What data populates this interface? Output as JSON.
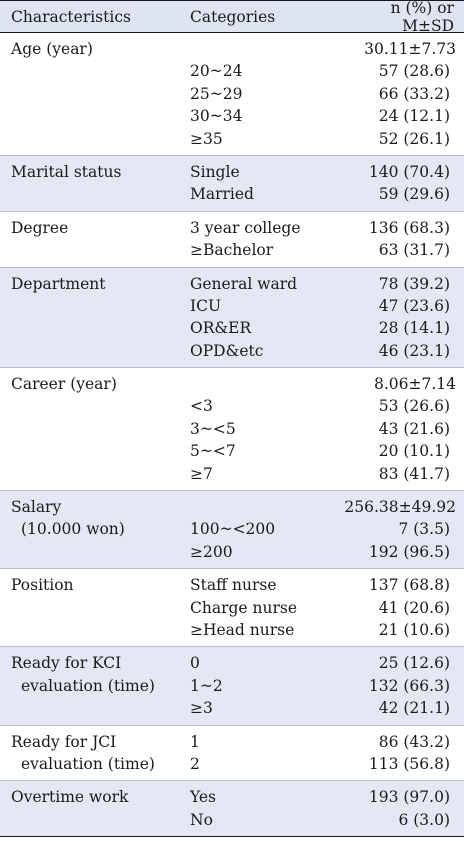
{
  "header": {
    "characteristics": "Characteristics",
    "categories": "Categories",
    "value": "n (%) or M±SD"
  },
  "groups": [
    {
      "label": [
        "Age (year)"
      ],
      "rows": [
        {
          "category": "",
          "value": "30.11±7.73",
          "total": true
        },
        {
          "category": "20~24",
          "value": "57 (28.6)"
        },
        {
          "category": "25~29",
          "value": "66 (33.2)"
        },
        {
          "category": "30~34",
          "value": "24 (12.1)"
        },
        {
          "category": "≥35",
          "value": "52 (26.1)"
        }
      ]
    },
    {
      "label": [
        "Marital status"
      ],
      "rows": [
        {
          "category": "Single",
          "value": "140 (70.4)"
        },
        {
          "category": "Married",
          "value": "59 (29.6)"
        }
      ]
    },
    {
      "label": [
        "Degree"
      ],
      "rows": [
        {
          "category": "3 year college",
          "value": "136 (68.3)"
        },
        {
          "category": "≥Bachelor",
          "value": "63 (31.7)"
        }
      ]
    },
    {
      "label": [
        "Department"
      ],
      "rows": [
        {
          "category": "General ward",
          "value": "78 (39.2)"
        },
        {
          "category": "ICU",
          "value": "47 (23.6)"
        },
        {
          "category": "OR&ER",
          "value": "28 (14.1)"
        },
        {
          "category": "OPD&etc",
          "value": "46 (23.1)"
        }
      ]
    },
    {
      "label": [
        "Career (year)"
      ],
      "rows": [
        {
          "category": "",
          "value": "8.06±7.14",
          "total": true
        },
        {
          "category": "<3",
          "value": "53 (26.6)"
        },
        {
          "category": "3~<5",
          "value": "43 (21.6)"
        },
        {
          "category": "5~<7",
          "value": "20 (10.1)"
        },
        {
          "category": "≥7",
          "value": "83 (41.7)"
        }
      ]
    },
    {
      "label": [
        "Salary",
        "(10.000 won)"
      ],
      "rows": [
        {
          "category": "",
          "value": "256.38±49.92",
          "total": true
        },
        {
          "category": "100~<200",
          "value": "7 (3.5)"
        },
        {
          "category": "≥200",
          "value": "192 (96.5)"
        }
      ]
    },
    {
      "label": [
        "Position"
      ],
      "rows": [
        {
          "category": "Staff nurse",
          "value": "137 (68.8)"
        },
        {
          "category": "Charge nurse",
          "value": "41 (20.6)"
        },
        {
          "category": "≥Head nurse",
          "value": "21 (10.6)"
        }
      ]
    },
    {
      "label": [
        "Ready for KCI",
        "evaluation (time)"
      ],
      "rows": [
        {
          "category": "0",
          "value": "25 (12.6)"
        },
        {
          "category": "1~2",
          "value": "132 (66.3)"
        },
        {
          "category": "≥3",
          "value": "42 (21.1)"
        }
      ]
    },
    {
      "label": [
        "Ready for JCI",
        "evaluation (time)"
      ],
      "rows": [
        {
          "category": "1",
          "value": "86 (43.2)"
        },
        {
          "category": "2",
          "value": "113 (56.8)"
        }
      ]
    },
    {
      "label": [
        "Overtime work"
      ],
      "rows": [
        {
          "category": "Yes",
          "value": "193 (97.0)"
        },
        {
          "category": "No",
          "value": "6 (3.0)"
        }
      ]
    }
  ]
}
